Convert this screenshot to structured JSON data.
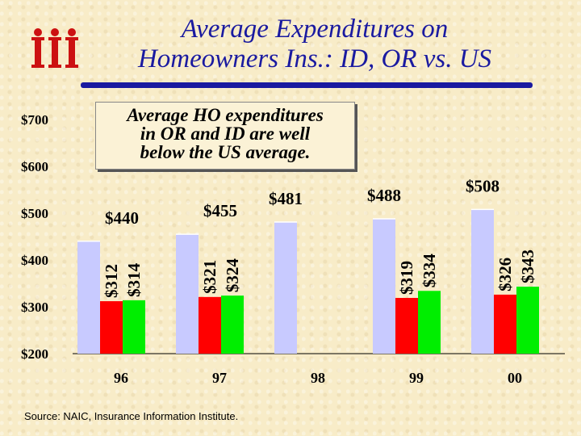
{
  "title": {
    "line1": "Average Expenditures on",
    "line2": "Homeowners Ins.: ID, OR vs. US"
  },
  "note": {
    "line1": "Average HO expenditures",
    "line2": "in OR and ID are well",
    "line3": "below the US average."
  },
  "source": "Source:  NAIC, Insurance Information Institute.",
  "colors": {
    "us": "#c8caff",
    "or": "#ff0000",
    "id": "#00ee00",
    "title": "#1a1aa0",
    "logo": "#cc1111"
  },
  "chart_data": {
    "type": "bar",
    "categories": [
      "96",
      "97",
      "98",
      "99",
      "00"
    ],
    "ylim": [
      200,
      700
    ],
    "yticks": [
      200,
      300,
      400,
      500,
      600,
      700
    ],
    "ytick_labels": [
      "$200",
      "$300",
      "$400",
      "$500",
      "$600",
      "$700"
    ],
    "series": [
      {
        "key": "us",
        "values": [
          440,
          455,
          481,
          488,
          508
        ],
        "labels": [
          "$440",
          "$455",
          "$481",
          "$488",
          "$508"
        ]
      },
      {
        "key": "or",
        "values": [
          312,
          321,
          null,
          319,
          326
        ],
        "labels": [
          "$312",
          "$321",
          "",
          "$319",
          "$326"
        ]
      },
      {
        "key": "id",
        "values": [
          314,
          324,
          null,
          334,
          343
        ],
        "labels": [
          "$314",
          "$324",
          "",
          "$334",
          "$343"
        ]
      }
    ],
    "grid": false,
    "legend": "none"
  }
}
